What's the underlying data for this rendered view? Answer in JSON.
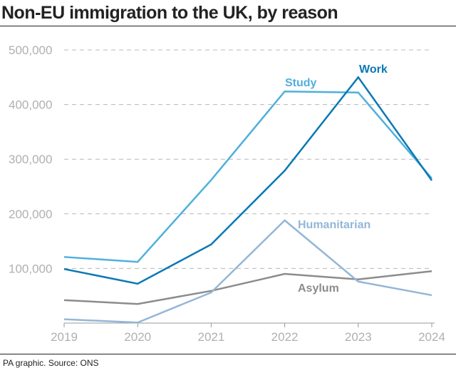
{
  "chart_data": {
    "type": "line",
    "title": "Non-EU immigration to the UK, by reason",
    "source": "PA graphic. Source: ONS",
    "x": [
      "2019",
      "2020",
      "2021",
      "2022",
      "2023",
      "2024"
    ],
    "ylim": [
      0,
      500000
    ],
    "yticks": [
      100000,
      200000,
      300000,
      400000,
      500000
    ],
    "ytick_labels": [
      "100,000",
      "200,000",
      "300,000",
      "400,000",
      "500,000"
    ],
    "grid": true,
    "series": [
      {
        "name": "Study",
        "color": "#4fb0dc",
        "values": [
          121000,
          112000,
          262000,
          424000,
          422000,
          265000
        ]
      },
      {
        "name": "Work",
        "color": "#0a78b4",
        "values": [
          99000,
          72000,
          144000,
          279000,
          450000,
          261000
        ]
      },
      {
        "name": "Humanitarian",
        "color": "#94b6d8",
        "values": [
          7000,
          1000,
          56000,
          188000,
          76000,
          51000
        ]
      },
      {
        "name": "Asylum",
        "color": "#8c8c8c",
        "values": [
          42000,
          35000,
          59000,
          90000,
          80000,
          95000
        ]
      }
    ]
  }
}
